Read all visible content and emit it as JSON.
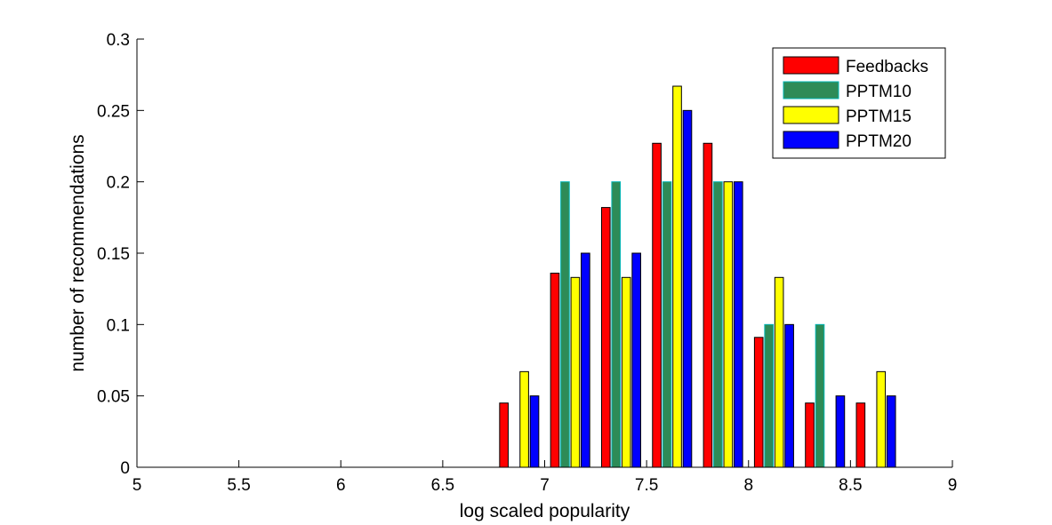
{
  "chart_data": {
    "type": "bar",
    "title": "",
    "xlabel": "log scaled popularity",
    "ylabel": "number of recommendations",
    "xlim": [
      5,
      9
    ],
    "ylim": [
      0,
      0.3
    ],
    "xticks": [
      5,
      5.5,
      6,
      6.5,
      7,
      7.5,
      8,
      8.5,
      9
    ],
    "xtick_labels": [
      "5",
      "5.5",
      "6",
      "6.5",
      "7",
      "7.5",
      "8",
      "8.5",
      "9"
    ],
    "yticks": [
      0,
      0.05,
      0.1,
      0.15,
      0.2,
      0.25,
      0.3
    ],
    "ytick_labels": [
      "0",
      "0.05",
      "0.1",
      "0.15",
      "0.2",
      "0.25",
      "0.3"
    ],
    "grid": false,
    "legend_position": "top-right",
    "x": [
      5.125,
      5.375,
      5.625,
      5.875,
      6.125,
      6.375,
      6.625,
      6.875,
      7.125,
      7.375,
      7.625,
      7.875,
      8.125,
      8.375,
      8.625,
      8.875
    ],
    "series": [
      {
        "name": "Feedbacks",
        "color": "#ff0000",
        "values": [
          0,
          0,
          0,
          0,
          0,
          0,
          0,
          0.045,
          0.136,
          0.182,
          0.227,
          0.227,
          0.091,
          0.045,
          0.045,
          0
        ]
      },
      {
        "name": "PPTM10",
        "color": "#2e8b57",
        "edge_color": "#00b4b4",
        "values": [
          0,
          0,
          0,
          0,
          0,
          0,
          0,
          0,
          0.2,
          0.2,
          0.2,
          0.2,
          0.1,
          0.1,
          0,
          0
        ]
      },
      {
        "name": "PPTM15",
        "color": "#ffff00",
        "values": [
          0,
          0,
          0,
          0,
          0,
          0,
          0,
          0.067,
          0.133,
          0.133,
          0.267,
          0.2,
          0.133,
          0,
          0.067,
          0
        ]
      },
      {
        "name": "PPTM20",
        "color": "#0000ff",
        "values": [
          0,
          0,
          0,
          0,
          0,
          0,
          0,
          0.05,
          0.15,
          0.15,
          0.25,
          0.2,
          0.1,
          0.05,
          0.05,
          0
        ]
      }
    ]
  }
}
